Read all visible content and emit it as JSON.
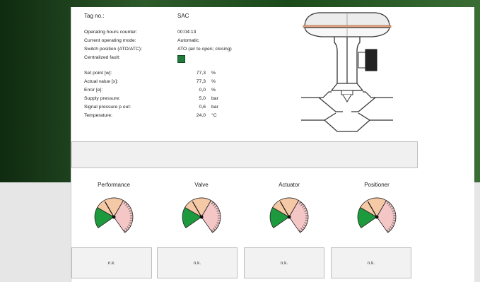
{
  "info": {
    "tag_label": "Tag no.:",
    "tag_value": "SAC",
    "rows": [
      {
        "label": "Operating hours counter:",
        "value": "00:04:13"
      },
      {
        "label": "Current operating mode:",
        "value": "Automatic"
      },
      {
        "label": "Switch position (ATO/ATC):",
        "value": "ATO (air to open; closing)"
      }
    ],
    "fault_label": "Centralized fault:",
    "measurements": [
      {
        "label": "Set point [w]:",
        "value": "77,3",
        "unit": "%"
      },
      {
        "label": "Actual value [x]:",
        "value": "77,3",
        "unit": "%"
      },
      {
        "label": "Error [e]:",
        "value": "0,0",
        "unit": "%"
      },
      {
        "label": "Supply pressure:",
        "value": "5,0",
        "unit": "bar"
      },
      {
        "label": "Signal pressure p out:",
        "value": "0,6",
        "unit": "bar"
      },
      {
        "label": "Temperature:",
        "value": "24,0",
        "unit": "°C"
      }
    ]
  },
  "colors": {
    "good": "#1e9a3e",
    "warning": "#f6c9a6",
    "fault": "#f4c6c6",
    "fault_indicator": "#1f7a3c"
  },
  "gauges": [
    {
      "title": "Performance",
      "status": "n.k.",
      "level": 0.25
    },
    {
      "title": "Valve",
      "status": "n.k.",
      "level": 0.25
    },
    {
      "title": "Actuator",
      "status": "n.k.",
      "level": 0.25
    },
    {
      "title": "Positioner",
      "status": "n.k.",
      "level": 0.25
    }
  ]
}
